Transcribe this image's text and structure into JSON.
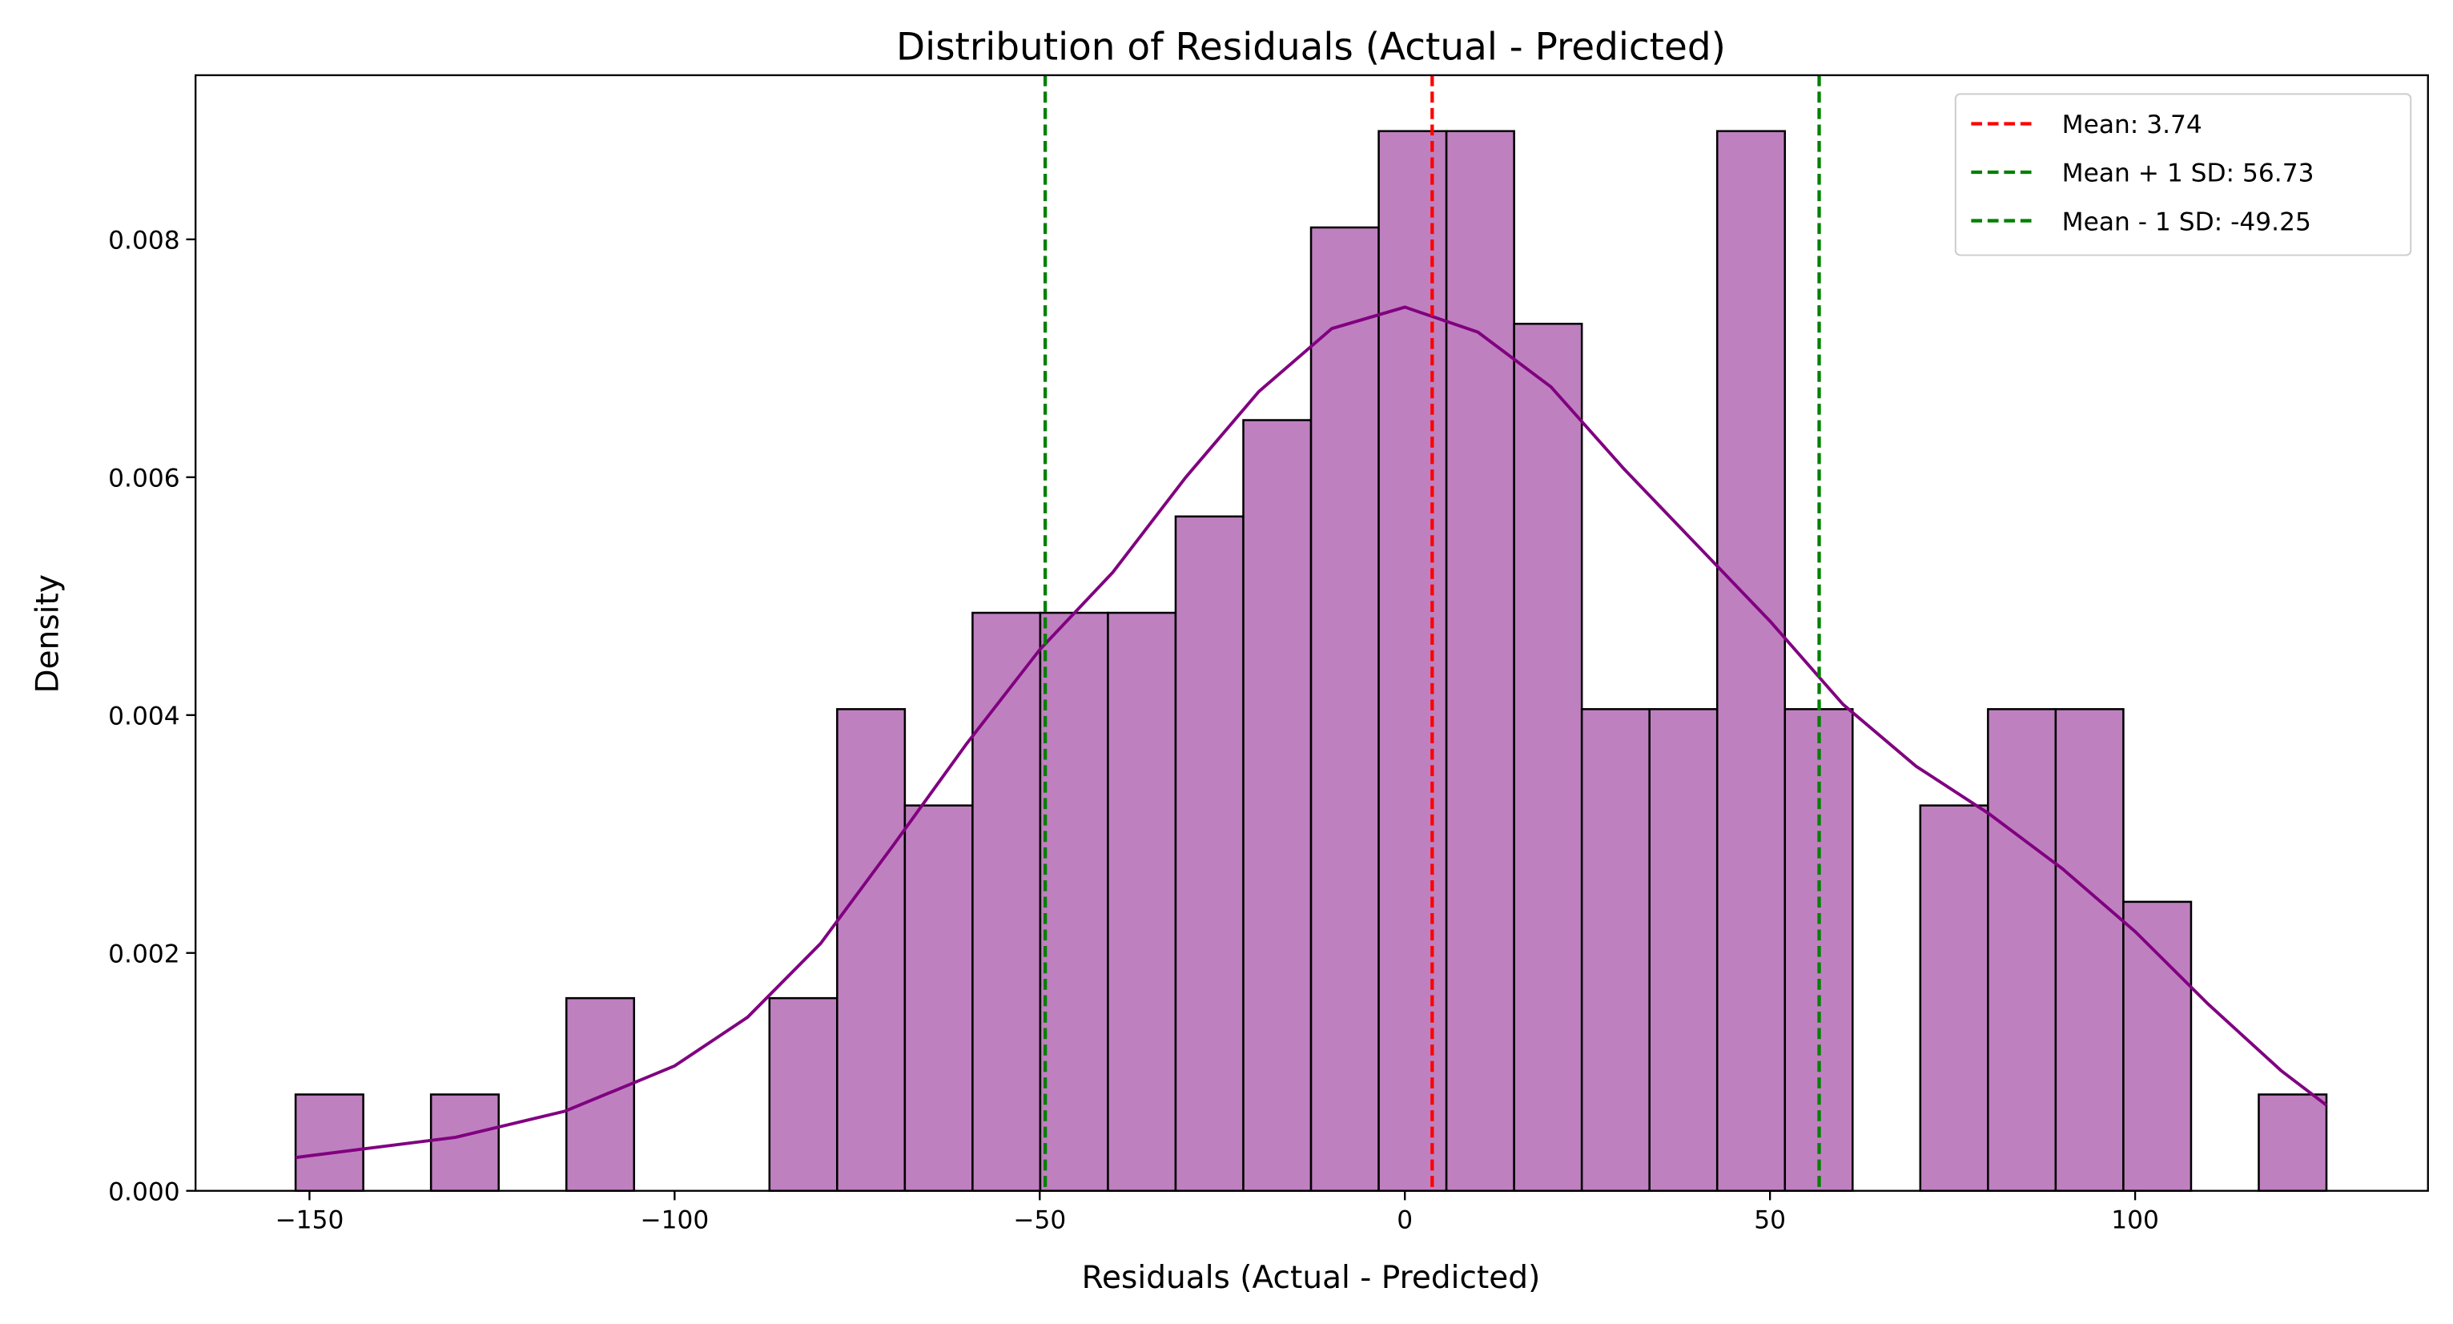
{
  "chart_data": {
    "type": "histogram",
    "title": "Distribution of Residuals (Actual - Predicted)",
    "x_label": "Residuals (Actual - Predicted)",
    "y_label": "Density",
    "bins": [
      -151.9,
      -142.63,
      -133.36,
      -124.09,
      -114.82,
      -105.55,
      -96.28,
      -87.01,
      -77.74,
      -68.47,
      -59.2,
      -49.93,
      -40.66,
      -31.39,
      -22.12,
      -12.85,
      -3.58,
      5.69,
      14.96,
      24.23,
      33.5,
      42.77,
      52.04,
      61.31,
      70.58,
      79.85,
      89.12,
      98.39,
      107.66,
      116.93,
      126.2
    ],
    "values": [
      0.00081,
      0,
      0.00081,
      0,
      0.00162,
      0,
      0,
      0.00162,
      0.00405,
      0.00324,
      0.00486,
      0.00486,
      0.00486,
      0.00567,
      0.00648,
      0.0081,
      0.00891,
      0.00891,
      0.00729,
      0.00405,
      0.00405,
      0.00891,
      0.00405,
      0,
      0.00324,
      0.00405,
      0.00405,
      0.00243,
      0,
      0.00081
    ],
    "color": "#bf80bf",
    "kde": {
      "color": "#800080",
      "x": [
        -151.9,
        -130,
        -115,
        -100,
        -90,
        -80,
        -70,
        -60,
        -50,
        -40,
        -30,
        -20,
        -10,
        0,
        10,
        20,
        30,
        40,
        50,
        60,
        70,
        80,
        90,
        100,
        110,
        120,
        126.2
      ],
      "values": [
        0.00028,
        0.00045,
        0.00067,
        0.00105,
        0.00146,
        0.00208,
        0.00291,
        0.00376,
        0.00455,
        0.0052,
        0.006,
        0.00672,
        0.00725,
        0.00743,
        0.00722,
        0.00676,
        0.00607,
        0.00543,
        0.00479,
        0.00409,
        0.00357,
        0.00317,
        0.00271,
        0.00218,
        0.00157,
        0.00101,
        0.00072
      ]
    },
    "vlines": [
      {
        "name": "Mean: 3.74",
        "value": 3.74,
        "color": "#ff0000"
      },
      {
        "name": "Mean + 1 SD: 56.73",
        "value": 56.73,
        "color": "#008000"
      },
      {
        "name": "Mean - 1 SD: -49.25",
        "value": -49.25,
        "color": "#008000"
      }
    ],
    "legend": "upper right",
    "xlim": [
      -165.6,
      140.1
    ],
    "ylim": [
      0,
      0.00938
    ],
    "xticks": [
      {
        "value": -150,
        "label": "−150"
      },
      {
        "value": -100,
        "label": "−100"
      },
      {
        "value": -50,
        "label": "−50"
      },
      0,
      50,
      100
    ],
    "yticks": [
      {
        "value": 0,
        "label": "0.000"
      },
      0.002,
      0.004,
      0.006,
      0.008
    ]
  }
}
